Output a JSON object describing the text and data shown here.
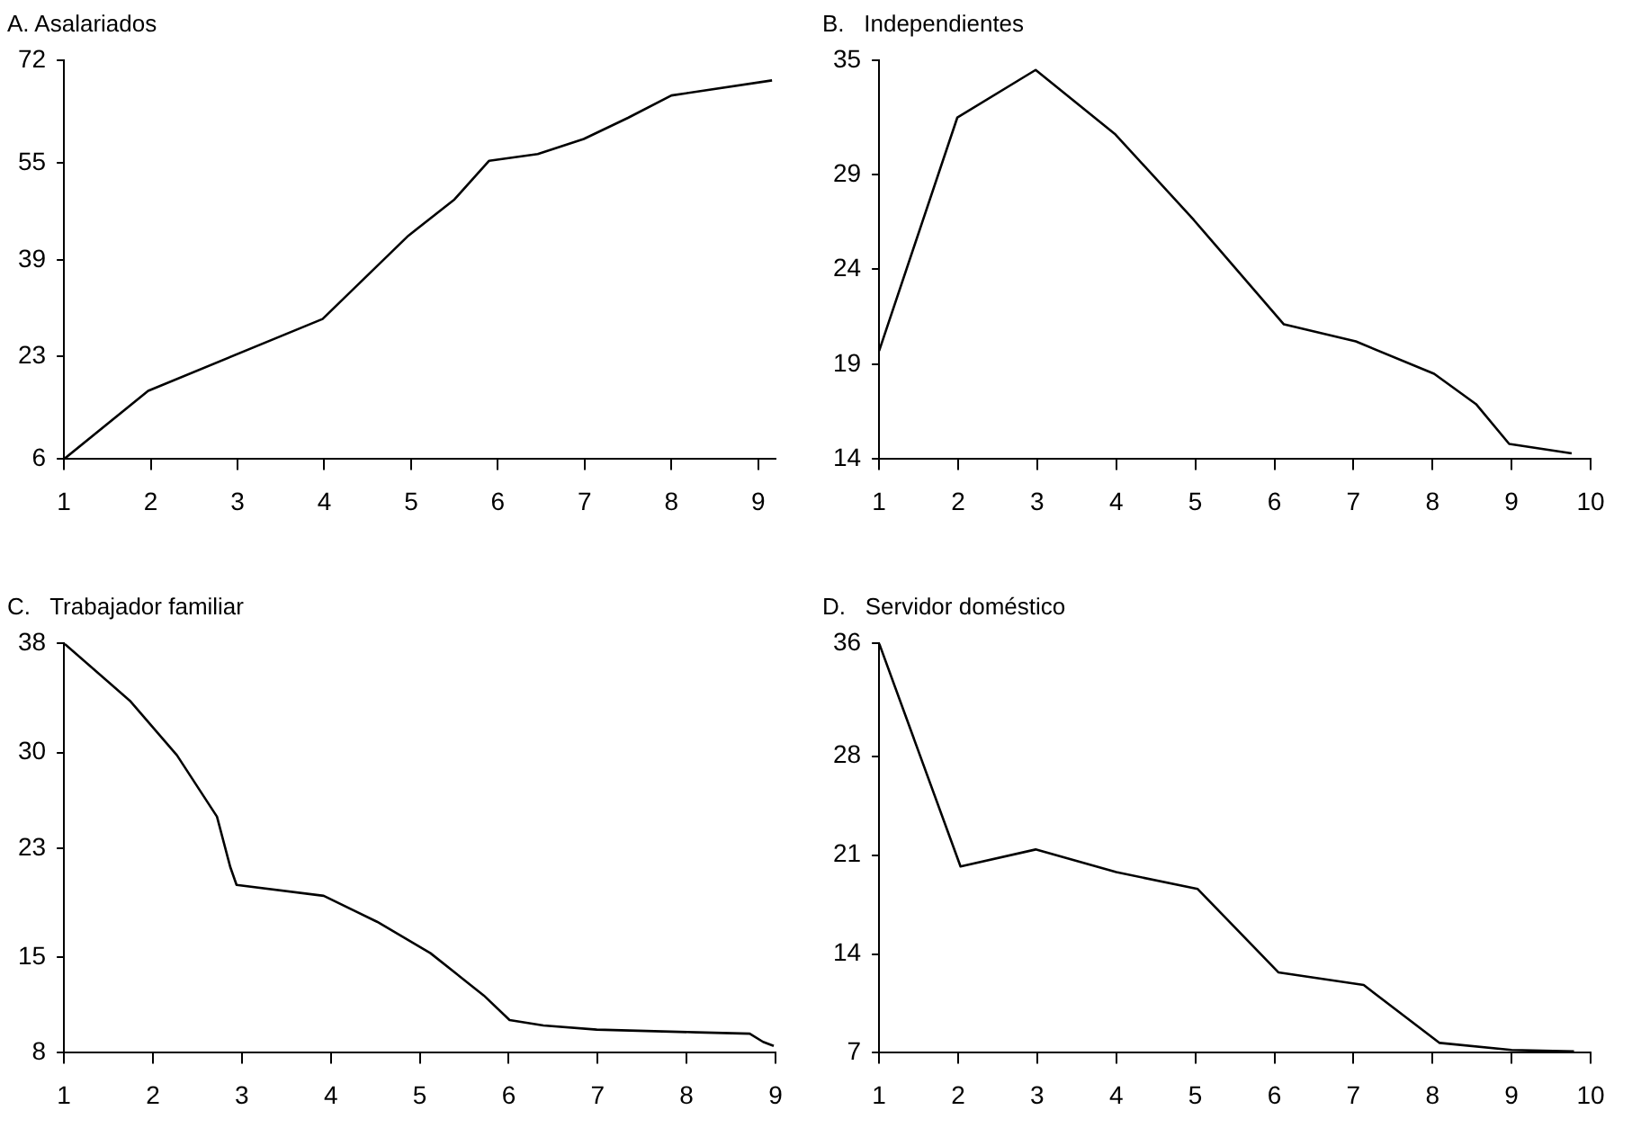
{
  "chart_data": [
    {
      "type": "line",
      "title": "A. Asalariados",
      "x": [
        1,
        1.97,
        3.98,
        4.97,
        5.5,
        5.9,
        6.46,
        6.99,
        7.5,
        8,
        9.16
      ],
      "values": [
        6,
        17.3,
        29.2,
        43,
        49,
        55.4,
        56.5,
        59,
        62.5,
        66.2,
        68.7
      ],
      "color": "#000000",
      "xlim": [
        1,
        9.2
      ],
      "xticks": [
        1,
        2,
        3,
        4,
        5,
        6,
        7,
        8,
        9
      ],
      "ylim": [
        6,
        72
      ],
      "yticks": [
        6,
        23,
        39,
        55,
        72
      ],
      "grid": false,
      "legend": false,
      "marker": "none"
    },
    {
      "type": "line",
      "title": "B.   Independientes",
      "x": [
        1,
        1.99,
        2.98,
        3.99,
        4.98,
        6.12,
        7.03,
        8.02,
        8.55,
        8.97,
        9.76
      ],
      "values": [
        19.7,
        32,
        34.5,
        31.1,
        26.6,
        21.1,
        20.2,
        18.5,
        16.9,
        14.8,
        14.3
      ],
      "color": "#000000",
      "xlim": [
        1,
        10
      ],
      "xticks": [
        1,
        2,
        3,
        4,
        5,
        6,
        7,
        8,
        9,
        10
      ],
      "ylim": [
        14,
        35
      ],
      "yticks": [
        14,
        19,
        24,
        29,
        35
      ],
      "grid": false,
      "legend": false,
      "marker": "none"
    },
    {
      "type": "line",
      "title": "C.   Trabajador familiar",
      "x": [
        1,
        1.74,
        2.27,
        2.72,
        2.87,
        2.94,
        3.92,
        4.52,
        5.12,
        5.72,
        6.01,
        6.39,
        6.99,
        8.11,
        8.71,
        8.86,
        8.98
      ],
      "values": [
        38,
        33.8,
        29.8,
        25.3,
        21.6,
        20.3,
        19.5,
        17.6,
        15.3,
        12.2,
        10.4,
        10,
        9.7,
        9.5,
        9.4,
        8.8,
        8.5
      ],
      "color": "#000000",
      "xlim": [
        1,
        9
      ],
      "xticks": [
        1,
        2,
        3,
        4,
        5,
        6,
        7,
        8,
        9
      ],
      "ylim": [
        8,
        38
      ],
      "yticks": [
        8,
        15,
        23,
        30,
        38
      ],
      "grid": false,
      "legend": false,
      "marker": "none"
    },
    {
      "type": "line",
      "title": "D.   Servidor doméstico",
      "x": [
        1,
        2.03,
        2.98,
        4,
        5.03,
        6.05,
        7.13,
        8.09,
        9,
        9.79
      ],
      "values": [
        36,
        20.2,
        21.4,
        19.8,
        18.6,
        12.7,
        11.8,
        7.7,
        7.2,
        7.1
      ],
      "color": "#000000",
      "xlim": [
        1,
        10
      ],
      "xticks": [
        1,
        2,
        3,
        4,
        5,
        6,
        7,
        8,
        9,
        10
      ],
      "ylim": [
        7,
        36
      ],
      "yticks": [
        7,
        14,
        21,
        28,
        36
      ],
      "grid": false,
      "legend": false,
      "marker": "none"
    }
  ]
}
